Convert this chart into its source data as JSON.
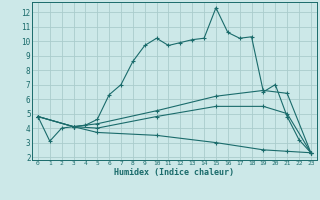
{
  "xlabel": "Humidex (Indice chaleur)",
  "background_color": "#cce8e8",
  "grid_color": "#aacccc",
  "line_color": "#1a6b6b",
  "xlim": [
    -0.5,
    23.5
  ],
  "ylim": [
    1.8,
    12.7
  ],
  "xticks": [
    0,
    1,
    2,
    3,
    4,
    5,
    6,
    7,
    8,
    9,
    10,
    11,
    12,
    13,
    14,
    15,
    16,
    17,
    18,
    19,
    20,
    21,
    22,
    23
  ],
  "yticks": [
    2,
    3,
    4,
    5,
    6,
    7,
    8,
    9,
    10,
    11,
    12
  ],
  "line1": {
    "x": [
      0,
      1,
      2,
      3,
      4,
      5,
      6,
      7,
      8,
      9,
      10,
      11,
      12,
      13,
      14,
      15,
      16,
      17,
      18,
      19,
      20,
      21,
      22,
      23
    ],
    "y": [
      4.8,
      3.1,
      4.0,
      4.1,
      4.2,
      4.6,
      6.3,
      7.0,
      8.6,
      9.7,
      10.2,
      9.7,
      9.9,
      10.1,
      10.2,
      12.3,
      10.6,
      10.2,
      10.3,
      6.5,
      7.0,
      4.8,
      3.2,
      2.3
    ]
  },
  "line2": {
    "x": [
      0,
      3,
      5,
      10,
      15,
      19,
      21,
      23
    ],
    "y": [
      4.8,
      4.1,
      4.3,
      5.2,
      6.2,
      6.6,
      6.4,
      2.3
    ]
  },
  "line3": {
    "x": [
      0,
      3,
      5,
      10,
      15,
      19,
      21,
      23
    ],
    "y": [
      4.8,
      4.1,
      4.0,
      4.8,
      5.5,
      5.5,
      5.0,
      2.3
    ]
  },
  "line4": {
    "x": [
      0,
      3,
      5,
      10,
      15,
      19,
      21,
      23
    ],
    "y": [
      4.8,
      4.1,
      3.7,
      3.5,
      3.0,
      2.5,
      2.4,
      2.3
    ]
  }
}
